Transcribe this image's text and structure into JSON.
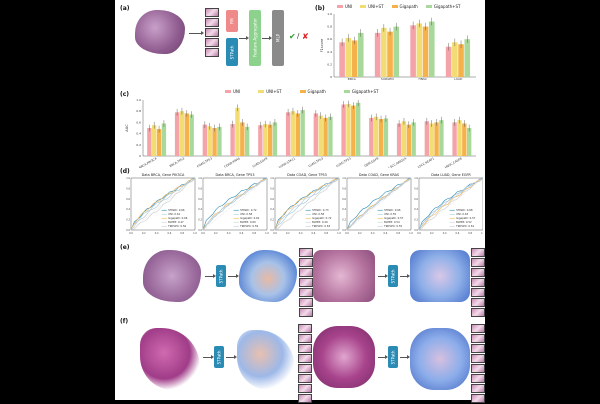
{
  "panels": {
    "a": "(a)",
    "b": "(b)",
    "c": "(c)",
    "d": "(d)",
    "e": "(e)",
    "f": "(f)"
  },
  "panel_a": {
    "box1": "FM",
    "box2": "STPath",
    "box3": "Feature Aggregator",
    "box4": "MLP",
    "check": "✔",
    "slash": "/",
    "cross": "✘"
  },
  "method_legend": [
    "UNI",
    "UNI+ST",
    "Gigapath",
    "Gigapath+ST"
  ],
  "colors": {
    "UNI": "#f4a3a8",
    "UNI+ST": "#f2dc74",
    "Gigapath": "#f6b24a",
    "Gigapath+ST": "#a9d99a",
    "STPath": "#2a8bb5",
    "FM": "#f08a8a",
    "Aggregator": "#8cd28c",
    "MLP": "#8a8a8a"
  },
  "stpath_label": "STPath",
  "chart_data": [
    {
      "type": "bar",
      "panel": "b",
      "ylabel": "F1score",
      "categories": [
        "BRCA",
        "SURGEN",
        "HNSC",
        "LUAD"
      ],
      "ylim": [
        0,
        1
      ],
      "yticks": [
        "0",
        "0.2",
        "0.4",
        "0.6",
        "0.8",
        "1.0"
      ],
      "series": [
        {
          "name": "UNI",
          "values": [
            0.55,
            0.7,
            0.82,
            0.48
          ]
        },
        {
          "name": "UNI+ST",
          "values": [
            0.62,
            0.78,
            0.85,
            0.55
          ]
        },
        {
          "name": "Gigapath",
          "values": [
            0.58,
            0.72,
            0.8,
            0.52
          ]
        },
        {
          "name": "Gigapath+ST",
          "values": [
            0.7,
            0.8,
            0.88,
            0.6
          ]
        }
      ]
    },
    {
      "type": "bar",
      "panel": "c",
      "ylabel": "AUC",
      "categories": [
        "BRCA,PIK3CA",
        "BRCA,TP53",
        "COAD,TP53",
        "COAD,KRAS",
        "LUAD,EGFR",
        "LUAD,STK11",
        "LUAD,TP53",
        "LUAD,TP53",
        "GBM,EGFR",
        "LSCC,ARID1A",
        "LSCC,KEAP1",
        "HNSC,CASP8"
      ],
      "ylim": [
        0,
        1
      ],
      "yticks": [
        "0",
        "0.2",
        "0.4",
        "0.6",
        "0.8",
        "1.0"
      ],
      "series": [
        {
          "name": "UNI",
          "values": [
            0.5,
            0.78,
            0.56,
            0.57,
            0.55,
            0.78,
            0.76,
            0.92,
            0.68,
            0.58,
            0.62,
            0.6
          ]
        },
        {
          "name": "UNI+ST",
          "values": [
            0.55,
            0.8,
            0.53,
            0.86,
            0.57,
            0.8,
            0.72,
            0.93,
            0.7,
            0.62,
            0.58,
            0.64
          ]
        },
        {
          "name": "Gigapath",
          "values": [
            0.48,
            0.76,
            0.5,
            0.6,
            0.56,
            0.76,
            0.68,
            0.9,
            0.66,
            0.56,
            0.6,
            0.58
          ]
        },
        {
          "name": "Gigapath+ST",
          "values": [
            0.58,
            0.74,
            0.52,
            0.52,
            0.6,
            0.82,
            0.7,
            0.95,
            0.67,
            0.6,
            0.64,
            0.5
          ]
        }
      ]
    },
    {
      "type": "line",
      "panel": "d",
      "subplots": [
        {
          "title": "Data BRCA, Gene PIK3CA",
          "legend": [
            "STPath: 0.66",
            "UNI: 0.61",
            "Gigapath: 0.66",
            "BLEEP: 0.47",
            "TRIPLEX: 0.56"
          ]
        },
        {
          "title": "Data BRCA, Gene TP53",
          "legend": [
            "STPath: 0.72",
            "UNI: 0.58",
            "Gigapath: 0.62",
            "BLEEP: 0.60",
            "TRIPLEX: 0.59"
          ]
        },
        {
          "title": "Data COAD, Gene TP53",
          "legend": [
            "STPath: 0.73",
            "UNI: 0.58",
            "Gigapath: 0.72",
            "BLEEP: 0.49",
            "TRIPLEX: 0.63"
          ]
        },
        {
          "title": "Data COAD, Gene KRAS",
          "legend": [
            "STPath: 0.66",
            "UNI: 0.55",
            "Gigapath: 0.57",
            "BLEEP: 0.54",
            "TRIPLEX: 0.55"
          ]
        },
        {
          "title": "Data LUAD, Gene EGFR",
          "legend": [
            "STPath: 0.68",
            "UNI: 0.63",
            "Gigapath: 0.57",
            "BLEEP: 0.52",
            "TRIPLEX: 0.61"
          ]
        }
      ],
      "yticks": [
        "1.0",
        "0.8",
        "0.6",
        "0.4",
        "0.2",
        "0.0"
      ],
      "xticks": [
        "0.0",
        "0.2",
        "0.4",
        "0.6",
        "0.8",
        "1.0"
      ]
    }
  ]
}
